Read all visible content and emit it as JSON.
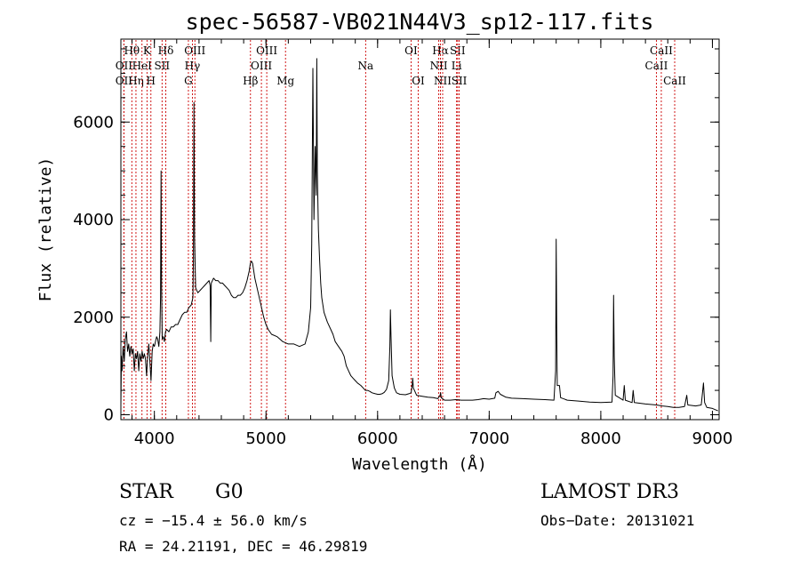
{
  "chart_data": {
    "type": "line",
    "title": "spec-56587-VB021N44V3_sp12-117.fits",
    "xlabel": "Wavelength (Å)",
    "ylabel": "Flux (relative)",
    "xlim": [
      3700,
      9060
    ],
    "ylim": [
      -100,
      7700
    ],
    "xticks": [
      4000,
      5000,
      6000,
      7000,
      8000,
      9000
    ],
    "xtick_labels": [
      "4000",
      "5000",
      "6000",
      "7000",
      "8000",
      "9000"
    ],
    "yticks": [
      0,
      2000,
      4000,
      6000
    ],
    "ytick_labels": [
      "0",
      "2000",
      "4000",
      "6000"
    ],
    "grid": false,
    "colors": {
      "spectrum": "#000000",
      "line_markers": "#cc0000"
    },
    "series": [
      {
        "name": "flux",
        "points": [
          [
            3700,
            200
          ],
          [
            3705,
            1200
          ],
          [
            3710,
            900
          ],
          [
            3720,
            1400
          ],
          [
            3730,
            1100
          ],
          [
            3740,
            1550
          ],
          [
            3750,
            1700
          ],
          [
            3760,
            1300
          ],
          [
            3770,
            1450
          ],
          [
            3780,
            1200
          ],
          [
            3790,
            1400
          ],
          [
            3800,
            1250
          ],
          [
            3810,
            1350
          ],
          [
            3820,
            900
          ],
          [
            3830,
            1250
          ],
          [
            3840,
            1150
          ],
          [
            3850,
            1300
          ],
          [
            3860,
            900
          ],
          [
            3870,
            1250
          ],
          [
            3880,
            1100
          ],
          [
            3890,
            1300
          ],
          [
            3900,
            1150
          ],
          [
            3910,
            1250
          ],
          [
            3920,
            1150
          ],
          [
            3930,
            800
          ],
          [
            3940,
            1200
          ],
          [
            3950,
            1450
          ],
          [
            3960,
            1100
          ],
          [
            3970,
            700
          ],
          [
            3980,
            1300
          ],
          [
            3990,
            1450
          ],
          [
            4000,
            1400
          ],
          [
            4010,
            1500
          ],
          [
            4020,
            1600
          ],
          [
            4030,
            1550
          ],
          [
            4040,
            1400
          ],
          [
            4050,
            1700
          ],
          [
            4055,
            2400
          ],
          [
            4060,
            5000
          ],
          [
            4065,
            2600
          ],
          [
            4070,
            1550
          ],
          [
            4080,
            1600
          ],
          [
            4090,
            1500
          ],
          [
            4100,
            1700
          ],
          [
            4110,
            1750
          ],
          [
            4130,
            1700
          ],
          [
            4150,
            1800
          ],
          [
            4170,
            1800
          ],
          [
            4190,
            1850
          ],
          [
            4210,
            1850
          ],
          [
            4230,
            1950
          ],
          [
            4250,
            2050
          ],
          [
            4270,
            2100
          ],
          [
            4290,
            2100
          ],
          [
            4310,
            2200
          ],
          [
            4330,
            2250
          ],
          [
            4345,
            2400
          ],
          [
            4350,
            3200
          ],
          [
            4355,
            6400
          ],
          [
            4360,
            3600
          ],
          [
            4370,
            2600
          ],
          [
            4390,
            2500
          ],
          [
            4410,
            2550
          ],
          [
            4430,
            2600
          ],
          [
            4450,
            2650
          ],
          [
            4470,
            2700
          ],
          [
            4490,
            2750
          ],
          [
            4500,
            2650
          ],
          [
            4505,
            1500
          ],
          [
            4510,
            2700
          ],
          [
            4530,
            2800
          ],
          [
            4550,
            2750
          ],
          [
            4570,
            2750
          ],
          [
            4590,
            2700
          ],
          [
            4610,
            2700
          ],
          [
            4630,
            2650
          ],
          [
            4650,
            2600
          ],
          [
            4670,
            2550
          ],
          [
            4690,
            2450
          ],
          [
            4710,
            2400
          ],
          [
            4730,
            2400
          ],
          [
            4750,
            2450
          ],
          [
            4770,
            2450
          ],
          [
            4790,
            2500
          ],
          [
            4810,
            2600
          ],
          [
            4830,
            2750
          ],
          [
            4850,
            2950
          ],
          [
            4860,
            3100
          ],
          [
            4870,
            3150
          ],
          [
            4880,
            3100
          ],
          [
            4900,
            2800
          ],
          [
            4920,
            2600
          ],
          [
            4940,
            2400
          ],
          [
            4960,
            2200
          ],
          [
            4980,
            2000
          ],
          [
            5000,
            1850
          ],
          [
            5020,
            1750
          ],
          [
            5050,
            1650
          ],
          [
            5100,
            1600
          ],
          [
            5150,
            1500
          ],
          [
            5200,
            1450
          ],
          [
            5250,
            1450
          ],
          [
            5300,
            1400
          ],
          [
            5350,
            1450
          ],
          [
            5380,
            1700
          ],
          [
            5400,
            2200
          ],
          [
            5410,
            3500
          ],
          [
            5420,
            7100
          ],
          [
            5430,
            4000
          ],
          [
            5440,
            5500
          ],
          [
            5450,
            4500
          ],
          [
            5455,
            7300
          ],
          [
            5460,
            5000
          ],
          [
            5470,
            3800
          ],
          [
            5480,
            3200
          ],
          [
            5490,
            2700
          ],
          [
            5500,
            2400
          ],
          [
            5520,
            2100
          ],
          [
            5550,
            1900
          ],
          [
            5580,
            1750
          ],
          [
            5600,
            1650
          ],
          [
            5620,
            1500
          ],
          [
            5650,
            1400
          ],
          [
            5680,
            1300
          ],
          [
            5700,
            1200
          ],
          [
            5720,
            1000
          ],
          [
            5740,
            900
          ],
          [
            5760,
            800
          ],
          [
            5780,
            750
          ],
          [
            5800,
            700
          ],
          [
            5820,
            650
          ],
          [
            5850,
            600
          ],
          [
            5870,
            550
          ],
          [
            5890,
            500
          ],
          [
            5910,
            500
          ],
          [
            5930,
            480
          ],
          [
            5950,
            450
          ],
          [
            5980,
            430
          ],
          [
            6000,
            420
          ],
          [
            6020,
            420
          ],
          [
            6040,
            430
          ],
          [
            6060,
            460
          ],
          [
            6080,
            520
          ],
          [
            6100,
            700
          ],
          [
            6110,
            1400
          ],
          [
            6115,
            2150
          ],
          [
            6120,
            1600
          ],
          [
            6130,
            800
          ],
          [
            6150,
            550
          ],
          [
            6170,
            450
          ],
          [
            6200,
            420
          ],
          [
            6250,
            410
          ],
          [
            6280,
            430
          ],
          [
            6300,
            450
          ],
          [
            6310,
            600
          ],
          [
            6315,
            750
          ],
          [
            6320,
            550
          ],
          [
            6350,
            400
          ],
          [
            6400,
            380
          ],
          [
            6450,
            360
          ],
          [
            6500,
            350
          ],
          [
            6540,
            330
          ],
          [
            6560,
            400
          ],
          [
            6565,
            450
          ],
          [
            6570,
            350
          ],
          [
            6600,
            300
          ],
          [
            6650,
            300
          ],
          [
            6700,
            310
          ],
          [
            6750,
            300
          ],
          [
            6800,
            300
          ],
          [
            6850,
            300
          ],
          [
            6900,
            310
          ],
          [
            6950,
            330
          ],
          [
            7000,
            320
          ],
          [
            7050,
            340
          ],
          [
            7060,
            450
          ],
          [
            7080,
            480
          ],
          [
            7100,
            420
          ],
          [
            7150,
            360
          ],
          [
            7200,
            340
          ],
          [
            7300,
            330
          ],
          [
            7400,
            320
          ],
          [
            7500,
            310
          ],
          [
            7580,
            300
          ],
          [
            7595,
            900
          ],
          [
            7600,
            3600
          ],
          [
            7605,
            1800
          ],
          [
            7610,
            600
          ],
          [
            7630,
            600
          ],
          [
            7640,
            350
          ],
          [
            7700,
            300
          ],
          [
            7800,
            280
          ],
          [
            7900,
            260
          ],
          [
            8000,
            250
          ],
          [
            8100,
            260
          ],
          [
            8110,
            800
          ],
          [
            8115,
            2450
          ],
          [
            8120,
            1200
          ],
          [
            8130,
            400
          ],
          [
            8200,
            300
          ],
          [
            8210,
            600
          ],
          [
            8220,
            300
          ],
          [
            8280,
            250
          ],
          [
            8290,
            500
          ],
          [
            8300,
            250
          ],
          [
            8400,
            220
          ],
          [
            8500,
            200
          ],
          [
            8550,
            180
          ],
          [
            8600,
            170
          ],
          [
            8650,
            150
          ],
          [
            8700,
            150
          ],
          [
            8750,
            170
          ],
          [
            8770,
            400
          ],
          [
            8780,
            200
          ],
          [
            8850,
            180
          ],
          [
            8900,
            200
          ],
          [
            8920,
            650
          ],
          [
            8930,
            250
          ],
          [
            8950,
            150
          ],
          [
            9000,
            130
          ],
          [
            9050,
            80
          ]
        ]
      }
    ],
    "line_markers": [
      {
        "name": "Hθ",
        "x": 3798,
        "row": 1
      },
      {
        "name": "OII",
        "x": 3727,
        "row": 2
      },
      {
        "name": "OII",
        "x": 3727,
        "row": 3
      },
      {
        "name": "Hη",
        "x": 3835,
        "row": 3
      },
      {
        "name": "K",
        "x": 3934,
        "row": 1
      },
      {
        "name": "HeI",
        "x": 3889,
        "row": 2
      },
      {
        "name": "H",
        "x": 3969,
        "row": 3
      },
      {
        "name": "Hδ",
        "x": 4102,
        "row": 1
      },
      {
        "name": "SII",
        "x": 4069,
        "row": 2
      },
      {
        "name": "OIII",
        "x": 4363,
        "row": 1
      },
      {
        "name": "Hγ",
        "x": 4341,
        "row": 2
      },
      {
        "name": "G",
        "x": 4305,
        "row": 3
      },
      {
        "name": "OIII",
        "x": 5007,
        "row": 1
      },
      {
        "name": "OIII",
        "x": 4959,
        "row": 2
      },
      {
        "name": "Hβ",
        "x": 4861,
        "row": 3
      },
      {
        "name": "Mg",
        "x": 5175,
        "row": 3
      },
      {
        "name": "Na",
        "x": 5893,
        "row": 2
      },
      {
        "name": "OI",
        "x": 6300,
        "row": 1
      },
      {
        "name": "OI",
        "x": 6364,
        "row": 3
      },
      {
        "name": "Hα",
        "x": 6563,
        "row": 1
      },
      {
        "name": "SII",
        "x": 6717,
        "row": 1
      },
      {
        "name": "NII",
        "x": 6548,
        "row": 2
      },
      {
        "name": "Li",
        "x": 6708,
        "row": 2
      },
      {
        "name": "NII",
        "x": 6583,
        "row": 3
      },
      {
        "name": "SII",
        "x": 6731,
        "row": 3
      },
      {
        "name": "CaII",
        "x": 8542,
        "row": 1
      },
      {
        "name": "CaII",
        "x": 8498,
        "row": 2
      },
      {
        "name": "CaII",
        "x": 8662,
        "row": 3
      }
    ]
  },
  "info": {
    "class": "STAR",
    "subclass": "G0",
    "survey": "LAMOST DR3",
    "redshift": "cz = −15.4 ± 56.0 km/s",
    "obs_date": "Obs−Date: 20131021",
    "coords": "RA =  24.21191, DEC =  46.29819"
  }
}
